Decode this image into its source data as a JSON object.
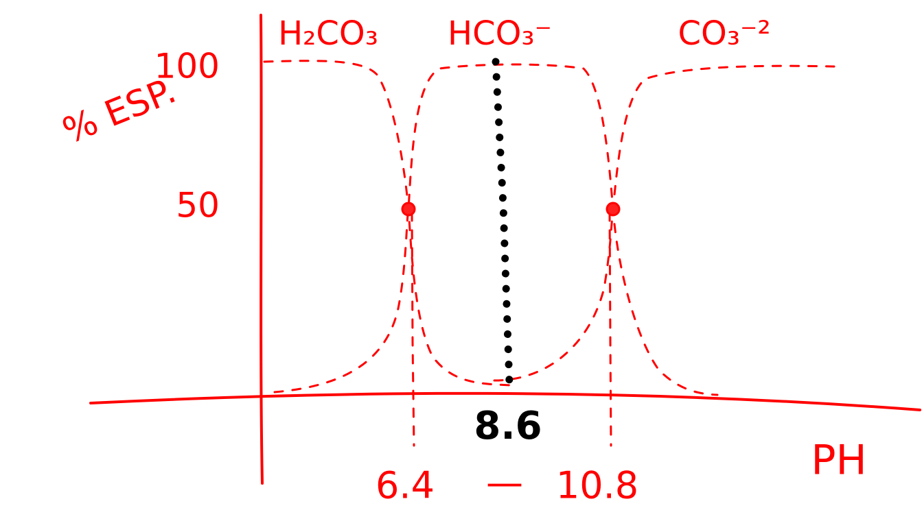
{
  "axes": {
    "y_label": "% ESP.",
    "y_ticks": [
      "100",
      "50"
    ],
    "x_label": "PH"
  },
  "species": [
    "H₂CO₃",
    "HCO₃⁻",
    "CO₃⁻²"
  ],
  "pka": {
    "first": "6.4",
    "separator": "—",
    "second": "10.8"
  },
  "isoelectric": "8.6"
}
